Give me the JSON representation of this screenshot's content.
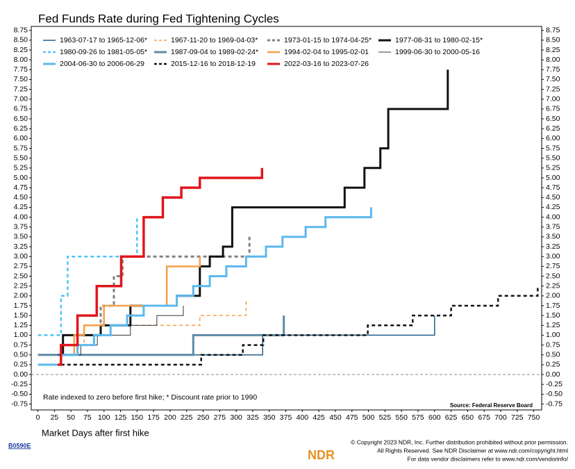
{
  "chart_data": {
    "type": "line",
    "title": "Fed Funds Rate during Fed Tightening Cycles",
    "x_label": "Market Days after first hike",
    "note": "Rate indexed to zero before first hike; * Discount rate prior to 1990",
    "source": "Source: Federal Reserve Board",
    "footer": {
      "code": "B0590E",
      "brand": "NDR",
      "lines": [
        "© Copyright 2023 NDR, Inc. Further distribution prohibited without prior permission.",
        "All Rights Reserved. See NDR Disclaimer at www.ndr.com/copyright.html",
        "For data vendor disclaimers refer to www.ndr.com/vendorinfo/"
      ]
    },
    "xlim": [
      -10,
      762
    ],
    "ylim": [
      -0.9,
      8.85
    ],
    "zero_line": true,
    "xticks": [
      0,
      25,
      50,
      75,
      100,
      125,
      150,
      175,
      200,
      225,
      250,
      275,
      300,
      325,
      350,
      375,
      400,
      425,
      450,
      475,
      500,
      525,
      550,
      575,
      600,
      625,
      650,
      675,
      700,
      725,
      750
    ],
    "yticks": [
      {
        "value": -0.75,
        "label": "-0.75"
      },
      {
        "value": -0.5,
        "label": "-0.50"
      },
      {
        "value": -0.25,
        "label": "-0.25"
      },
      {
        "value": 0,
        "label": "0.00"
      },
      {
        "value": 0.25,
        "label": "0.25"
      },
      {
        "value": 0.5,
        "label": "0.50"
      },
      {
        "value": 0.75,
        "label": "0.75"
      },
      {
        "value": 1,
        "label": "1.00"
      },
      {
        "value": 1.25,
        "label": "1.25"
      },
      {
        "value": 1.5,
        "label": "1.50"
      },
      {
        "value": 1.75,
        "label": "1.75"
      },
      {
        "value": 2,
        "label": "2.00"
      },
      {
        "value": 2.25,
        "label": "2.25"
      },
      {
        "value": 2.5,
        "label": "2.50"
      },
      {
        "value": 2.75,
        "label": "2.75"
      },
      {
        "value": 3,
        "label": "3.00"
      },
      {
        "value": 3.25,
        "label": "3.25"
      },
      {
        "value": 3.5,
        "label": "3.50"
      },
      {
        "value": 3.75,
        "label": "3.75"
      },
      {
        "value": 4,
        "label": "4.00"
      },
      {
        "value": 4.25,
        "label": "4.25"
      },
      {
        "value": 4.5,
        "label": "4.50"
      },
      {
        "value": 4.75,
        "label": "4.75"
      },
      {
        "value": 5,
        "label": "5.00"
      },
      {
        "value": 5.25,
        "label": "5.25"
      },
      {
        "value": 5.5,
        "label": "5.50"
      },
      {
        "value": 5.75,
        "label": "5.75"
      },
      {
        "value": 6,
        "label": "6.00"
      },
      {
        "value": 6.25,
        "label": "6.25"
      },
      {
        "value": 6.5,
        "label": "6.50"
      },
      {
        "value": 6.75,
        "label": "6.75"
      },
      {
        "value": 7,
        "label": "7.00"
      },
      {
        "value": 7.25,
        "label": "7.25"
      },
      {
        "value": 7.5,
        "label": "7.50"
      },
      {
        "value": 7.75,
        "label": "7.75"
      },
      {
        "value": 8,
        "label": "8.00"
      },
      {
        "value": 8.25,
        "label": "8.25"
      },
      {
        "value": 8.5,
        "label": "8.50"
      },
      {
        "value": 8.75,
        "label": "8.75"
      }
    ],
    "series": [
      {
        "name": "1963-07-17 to 1965-12-06*",
        "color": "#1f5f8b",
        "style": "solid",
        "width": 1.5,
        "x": [
          0,
          340,
          340,
          600,
          600
        ],
        "values": [
          0.5,
          0.5,
          1.0,
          1.0,
          1.5
        ]
      },
      {
        "name": "1967-11-20 to 1969-04-03*",
        "color": "#f0a040",
        "style": "dashed",
        "width": 1.5,
        "x": [
          45,
          70,
          70,
          245,
          245,
          315,
          315
        ],
        "values": [
          0.75,
          0.75,
          1.25,
          1.25,
          1.5,
          1.5,
          1.9
        ]
      },
      {
        "name": "1973-01-15 to 1974-04-25*",
        "color": "#808080",
        "style": "dashed",
        "width": 3,
        "x": [
          30,
          60,
          60,
          95,
          95,
          115,
          115,
          128,
          128,
          320,
          320
        ],
        "values": [
          0.5,
          0.5,
          1.0,
          1.0,
          1.75,
          1.75,
          2.5,
          2.5,
          3.0,
          3.0,
          3.5
        ]
      },
      {
        "name": "1977-08-31 to 1980-02-15*",
        "color": "#111111",
        "style": "solid",
        "width": 3,
        "x": [
          30,
          38,
          38,
          95,
          95,
          140,
          140,
          210,
          210,
          245,
          245,
          260,
          260,
          280,
          280,
          294,
          294,
          464,
          464,
          494,
          494,
          518,
          518,
          530,
          530,
          620,
          620
        ],
        "values": [
          0.5,
          0.5,
          1.0,
          1.0,
          1.25,
          1.25,
          1.75,
          1.75,
          2.0,
          2.0,
          2.75,
          2.75,
          3.0,
          3.0,
          3.25,
          3.25,
          4.25,
          4.25,
          4.75,
          4.75,
          5.25,
          5.25,
          5.75,
          5.75,
          6.75,
          6.75,
          7.75
        ]
      },
      {
        "name": "1980-09-26 to 1981-05-05*",
        "color": "#4fc3f7",
        "style": "dashed",
        "width": 2.5,
        "x": [
          0,
          35,
          35,
          45,
          45,
          150,
          150
        ],
        "values": [
          1.0,
          1.0,
          2.0,
          2.0,
          3.0,
          3.0,
          4.0
        ]
      },
      {
        "name": "1987-09-04 to 1989-02-24*",
        "color": "#5b8aa6",
        "style": "solid",
        "width": 3,
        "x": [
          0,
          235,
          235,
          372,
          372
        ],
        "values": [
          0.5,
          0.5,
          1.0,
          1.0,
          1.5
        ]
      },
      {
        "name": "1994-02-04 to 1995-02-01",
        "color": "#f5a04a",
        "style": "solid",
        "width": 2.5,
        "x": [
          40,
          55,
          55,
          70,
          70,
          100,
          100,
          195,
          195,
          245,
          245
        ],
        "values": [
          0.5,
          0.5,
          1.0,
          1.0,
          1.25,
          1.25,
          1.75,
          1.75,
          2.75,
          2.75,
          3.0
        ]
      },
      {
        "name": "1999-06-30 to 2000-05-16",
        "color": "#333333",
        "style": "solid",
        "width": 1,
        "x": [
          30,
          65,
          65,
          90,
          90,
          140,
          140,
          180,
          180,
          220,
          220
        ],
        "values": [
          0.5,
          0.5,
          0.75,
          0.75,
          1.0,
          1.0,
          1.25,
          1.25,
          1.5,
          1.5,
          1.75
        ]
      },
      {
        "name": "2004-06-30 to 2006-06-29",
        "color": "#5bb8ee",
        "style": "solid",
        "width": 3,
        "x": [
          0,
          35,
          35,
          60,
          60,
          85,
          85,
          110,
          110,
          135,
          135,
          160,
          160,
          210,
          210,
          235,
          235,
          260,
          260,
          285,
          285,
          315,
          315,
          345,
          345,
          370,
          370,
          405,
          405,
          435,
          435,
          504,
          504
        ],
        "values": [
          0.25,
          0.25,
          0.5,
          0.5,
          0.75,
          0.75,
          1.0,
          1.0,
          1.25,
          1.25,
          1.5,
          1.5,
          1.75,
          1.75,
          2.0,
          2.0,
          2.25,
          2.25,
          2.5,
          2.5,
          2.75,
          2.75,
          3.0,
          3.0,
          3.25,
          3.25,
          3.5,
          3.5,
          3.75,
          3.75,
          4.0,
          4.0,
          4.25
        ]
      },
      {
        "name": "2015-12-16 to 2018-12-19",
        "color": "#111111",
        "style": "dashed",
        "width": 2.5,
        "x": [
          35,
          247,
          247,
          310,
          310,
          341,
          341,
          499,
          499,
          567,
          567,
          625,
          625,
          696,
          696,
          756,
          756
        ],
        "values": [
          0.25,
          0.25,
          0.5,
          0.5,
          0.75,
          0.75,
          1.0,
          1.0,
          1.25,
          1.25,
          1.5,
          1.5,
          1.75,
          1.75,
          2.0,
          2.0,
          2.25
        ]
      },
      {
        "name": "2022-03-16 to 2023-07-26",
        "color": "#e0161b",
        "style": "solid",
        "width": 3.5,
        "x": [
          30,
          35,
          35,
          60,
          60,
          89,
          89,
          126,
          126,
          160,
          160,
          189,
          189,
          217,
          217,
          245,
          245,
          339,
          339
        ],
        "values": [
          0.25,
          0.25,
          0.75,
          0.75,
          1.5,
          1.5,
          2.25,
          2.25,
          3.0,
          3.0,
          4.0,
          4.0,
          4.5,
          4.5,
          4.75,
          4.75,
          5.0,
          5.0,
          5.25
        ]
      }
    ]
  }
}
